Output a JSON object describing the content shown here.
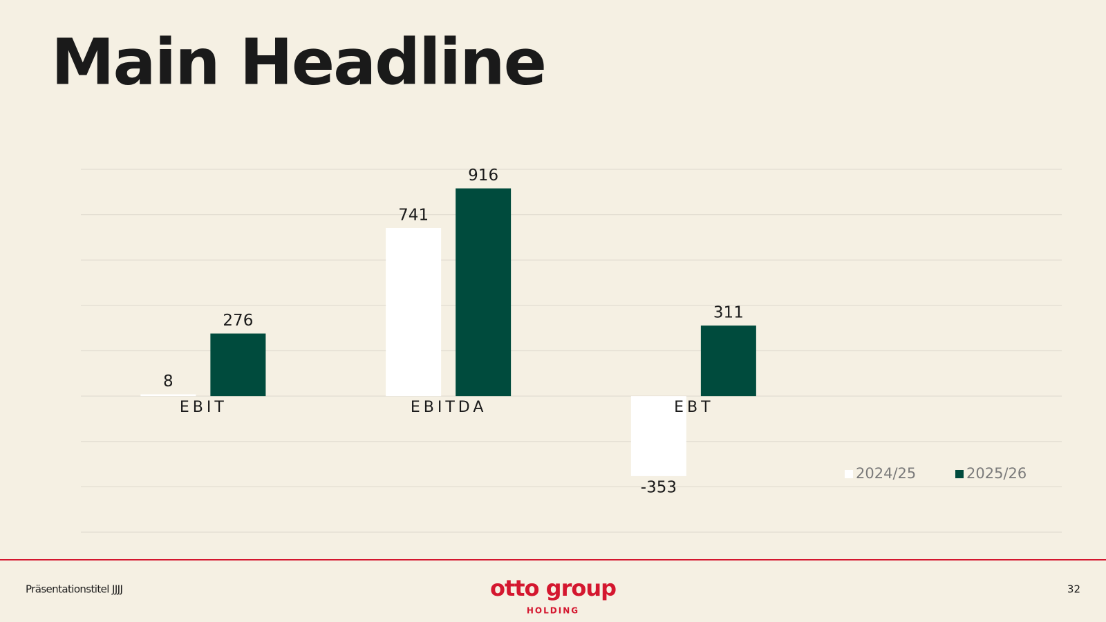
{
  "header": {
    "title": "Main Headline"
  },
  "chart_data": {
    "type": "bar",
    "categories": [
      "EBIT",
      "EBITDA",
      "EBT"
    ],
    "series": [
      {
        "name": "2024/25",
        "color": "#ffffff",
        "values": [
          8,
          741,
          -353
        ]
      },
      {
        "name": "2025/26",
        "color": "#004b3d",
        "values": [
          276,
          916,
          311
        ]
      }
    ],
    "ylim": [
      -600,
      1000
    ],
    "yticks": [
      -600,
      -400,
      -200,
      0,
      200,
      400,
      600,
      800,
      1000
    ],
    "grid": true,
    "legend": "lower right"
  },
  "footer": {
    "presentation_title": "Präsentationstitel JJJJ",
    "logo": "otto group",
    "logo_subtitle": "HOLDING",
    "page_number": "32"
  }
}
